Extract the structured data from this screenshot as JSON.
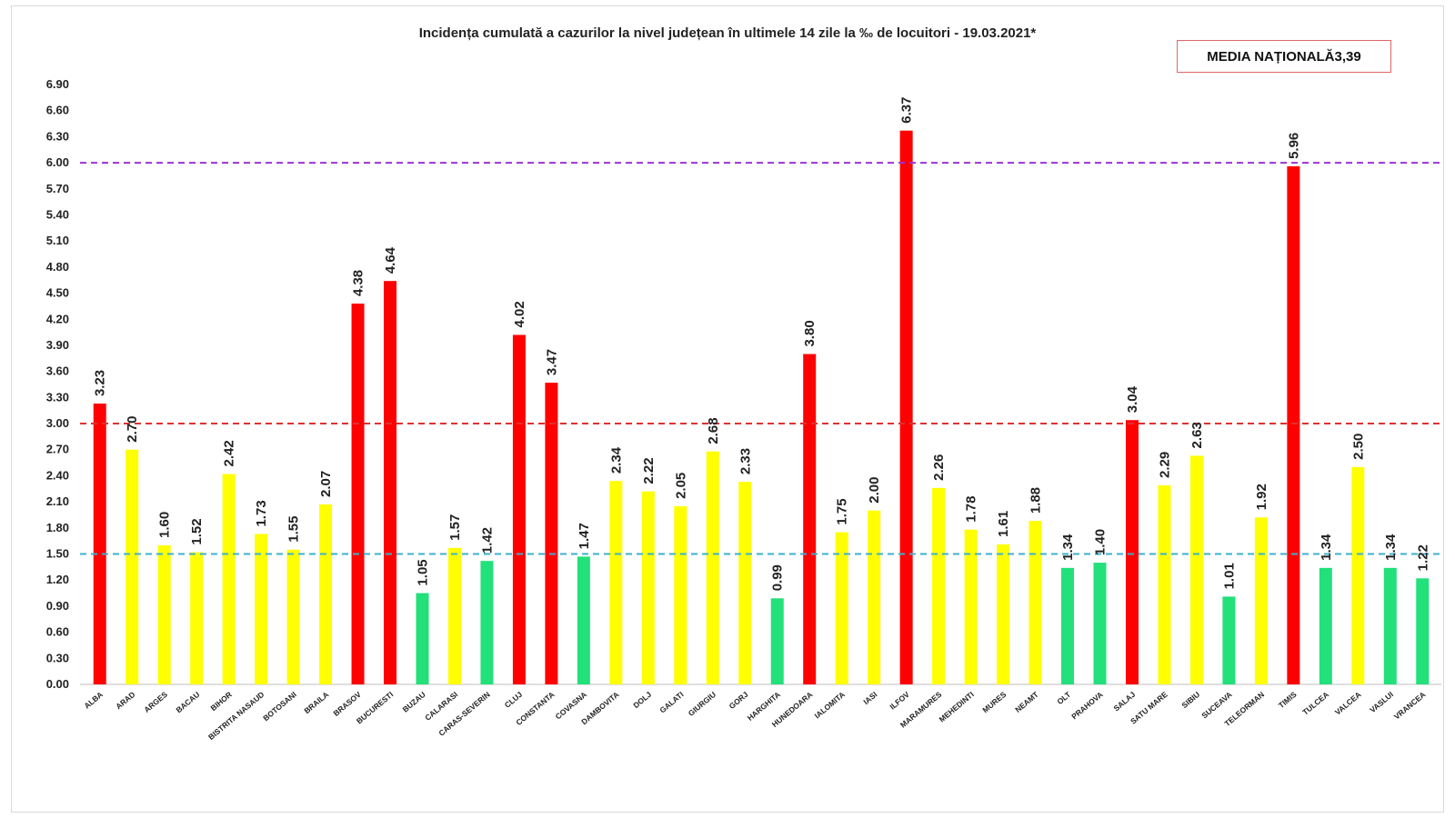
{
  "chart_data": {
    "type": "bar",
    "title": "Incidența cumulată a cazurilor la nivel județean în ultimele 14 zile la ‰ de locuitori - 19.03.2021*",
    "annotation_box": {
      "label": "MEDIA NAȚIONALĂ",
      "value": "3,39"
    },
    "ylim": [
      0,
      6.9
    ],
    "y_ticks": [
      "0.00",
      "0.30",
      "0.60",
      "0.90",
      "1.20",
      "1.50",
      "1.80",
      "2.10",
      "2.40",
      "2.70",
      "3.00",
      "3.30",
      "3.60",
      "3.90",
      "4.20",
      "4.50",
      "4.80",
      "5.10",
      "5.40",
      "5.70",
      "6.00",
      "6.30",
      "6.60",
      "6.90"
    ],
    "grid": false,
    "categories": [
      "ALBA",
      "ARAD",
      "ARGES",
      "BACAU",
      "BIHOR",
      "BISTRITA NASAUD",
      "BOTOSANI",
      "BRAILA",
      "BRASOV",
      "BUCURESTI",
      "BUZAU",
      "CALARASI",
      "CARAS-SEVERIN",
      "CLUJ",
      "CONSTANTA",
      "COVASNA",
      "DAMBOVITA",
      "DOLJ",
      "GALATI",
      "GIURGIU",
      "GORJ",
      "HARGHITA",
      "HUNEDOARA",
      "IALOMITA",
      "IASI",
      "ILFOV",
      "MARAMURES",
      "MEHEDINTI",
      "MURES",
      "NEAMT",
      "OLT",
      "PRAHOVA",
      "SALAJ",
      "SATU MARE",
      "SIBIU",
      "SUCEAVA",
      "TELEORMAN",
      "TIMIS",
      "TULCEA",
      "VALCEA",
      "VASLUI",
      "VRANCEA"
    ],
    "values": [
      3.23,
      2.7,
      1.6,
      1.52,
      2.42,
      1.73,
      1.55,
      2.07,
      4.38,
      4.64,
      1.05,
      1.57,
      1.42,
      4.02,
      3.47,
      1.47,
      2.34,
      2.22,
      2.05,
      2.68,
      2.33,
      0.99,
      3.8,
      1.75,
      2.0,
      6.37,
      2.26,
      1.78,
      1.61,
      1.88,
      1.34,
      1.4,
      3.04,
      2.29,
      2.63,
      1.01,
      1.92,
      5.96,
      1.34,
      2.5,
      1.34,
      1.22
    ],
    "data_labels": [
      "3.23",
      "2.70",
      "1.60",
      "1.52",
      "2.42",
      "1.73",
      "1.55",
      "2.07",
      "4.38",
      "4.64",
      "1.05",
      "1.57",
      "1.42",
      "4.02",
      "3.47",
      "1.47",
      "2.34",
      "2.22",
      "2.05",
      "2.68",
      "2.33",
      "0.99",
      "3.80",
      "1.75",
      "2.00",
      "6.37",
      "2.26",
      "1.78",
      "1.61",
      "1.88",
      "1.34",
      "1.40",
      "3.04",
      "2.29",
      "2.63",
      "1.01",
      "1.92",
      "5.96",
      "1.34",
      "2.50",
      "1.34",
      "1.22"
    ],
    "bar_colors": [
      "red",
      "yellow",
      "yellow",
      "yellow",
      "yellow",
      "yellow",
      "yellow",
      "yellow",
      "red",
      "red",
      "green",
      "yellow",
      "green",
      "red",
      "red",
      "green",
      "yellow",
      "yellow",
      "yellow",
      "yellow",
      "yellow",
      "green",
      "red",
      "yellow",
      "yellow",
      "red",
      "yellow",
      "yellow",
      "yellow",
      "yellow",
      "green",
      "green",
      "red",
      "yellow",
      "yellow",
      "green",
      "yellow",
      "red",
      "green",
      "yellow",
      "green",
      "green"
    ],
    "color_map": {
      "red": "#ff0000",
      "yellow": "#ffff00",
      "green": "#22e07a"
    },
    "reference_lines": [
      {
        "value": 6.0,
        "color": "#9b30d9"
      },
      {
        "value": 3.0,
        "color": "#e03030"
      },
      {
        "value": 1.5,
        "color": "#3bb0d0"
      }
    ]
  }
}
